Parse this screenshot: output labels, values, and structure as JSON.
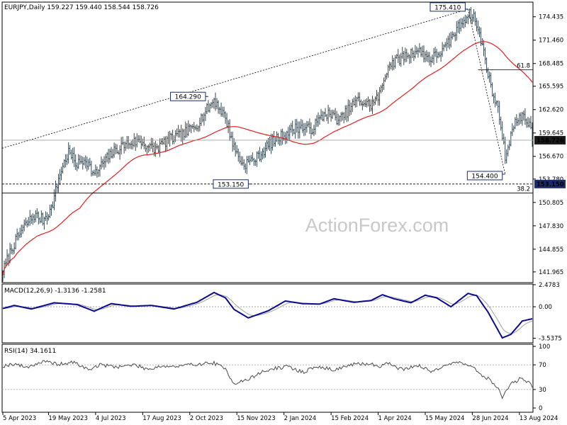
{
  "chart_data": [
    {
      "type": "candlestick",
      "symbol_line": "EURJPY,Daily  159.227 159.440 158.544 158.726",
      "last_price": "158.726",
      "y_ticks": [
        "174.435",
        "171.460",
        "168.485",
        "165.595",
        "162.620",
        "159.645",
        "156.670",
        "153.780",
        "150.805",
        "147.830",
        "144.855",
        "141.965"
      ],
      "y_tick_values": [
        174.435,
        171.46,
        168.485,
        165.595,
        162.62,
        159.645,
        156.67,
        153.78,
        150.805,
        147.83,
        144.855,
        141.965
      ],
      "ylim": [
        140.6,
        176.3
      ],
      "x_ticks": [
        "5 Apr 2023",
        "19 May 2023",
        "4 Jul 2023",
        "17 Aug 2023",
        "2 Oct 2023",
        "15 Nov 2023",
        "2 Jan 2024",
        "15 Feb 2024",
        "1 Apr 2024",
        "15 May 2024",
        "28 Jun 2024",
        "13 Aug 2024"
      ],
      "x_tick_bars": [
        0,
        32,
        65,
        98,
        131,
        164,
        197,
        230,
        263,
        296,
        329,
        362
      ],
      "n_bars": 372,
      "anchors": [
        [
          0,
          142.0
        ],
        [
          6,
          144.9
        ],
        [
          14,
          147.5
        ],
        [
          22,
          149.2
        ],
        [
          28,
          148.6
        ],
        [
          34,
          150.0
        ],
        [
          40,
          154.5
        ],
        [
          46,
          157.2
        ],
        [
          52,
          155.6
        ],
        [
          58,
          156.4
        ],
        [
          64,
          154.2
        ],
        [
          70,
          155.8
        ],
        [
          76,
          157.0
        ],
        [
          86,
          158.3
        ],
        [
          96,
          158.6
        ],
        [
          106,
          157.5
        ],
        [
          116,
          158.8
        ],
        [
          126,
          159.4
        ],
        [
          136,
          160.8
        ],
        [
          148,
          163.9
        ],
        [
          156,
          161.6
        ],
        [
          162,
          157.8
        ],
        [
          168,
          155.6
        ],
        [
          178,
          156.5
        ],
        [
          188,
          158.4
        ],
        [
          198,
          159.6
        ],
        [
          206,
          160.4
        ],
        [
          216,
          160.1
        ],
        [
          226,
          162.2
        ],
        [
          236,
          161.3
        ],
        [
          248,
          163.8
        ],
        [
          258,
          163.2
        ],
        [
          264,
          164.5
        ],
        [
          270,
          168.3
        ],
        [
          280,
          169.3
        ],
        [
          290,
          170.2
        ],
        [
          300,
          169.1
        ],
        [
          310,
          170.4
        ],
        [
          320,
          173.4
        ],
        [
          326,
          174.8
        ],
        [
          330,
          174.5
        ],
        [
          336,
          170.8
        ],
        [
          342,
          165.5
        ],
        [
          348,
          162.0
        ],
        [
          352,
          156.5
        ],
        [
          356,
          159.5
        ],
        [
          362,
          162.0
        ],
        [
          368,
          161.0
        ],
        [
          372,
          158.7
        ]
      ],
      "annotations": [
        {
          "label": "175.410",
          "bar": 326,
          "price": 175.41
        },
        {
          "label": "164.290",
          "bar": 144,
          "price": 164.29
        },
        {
          "label": "153.150",
          "bar": 174,
          "price": 153.15
        },
        {
          "label": "154.400",
          "bar": 352,
          "price": 154.4
        }
      ],
      "fib_labels": {
        "f618": "61.8",
        "f382": "38.2"
      },
      "fib_levels": {
        "f618": 167.69,
        "f382": 152.0
      },
      "support_label": "153.150",
      "support_level": 153.15,
      "moving_average": {
        "color": "#e02020"
      },
      "candle_color": "#37474f"
    },
    {
      "type": "macd",
      "label": "MACD(12,26,9) -1.3136 -1.2581",
      "y_ticks": [
        "2.4783",
        "0.00",
        "-3.5375"
      ],
      "y_tick_values": [
        2.4783,
        0,
        -3.5375
      ],
      "ylim": [
        -4.05,
        2.55
      ],
      "macd_anchors": [
        [
          0,
          -0.2
        ],
        [
          8,
          0.15
        ],
        [
          20,
          -0.25
        ],
        [
          36,
          0.45
        ],
        [
          52,
          0.25
        ],
        [
          64,
          -0.5
        ],
        [
          76,
          0.35
        ],
        [
          90,
          0.05
        ],
        [
          104,
          0.15
        ],
        [
          120,
          -0.25
        ],
        [
          136,
          0.5
        ],
        [
          148,
          1.6
        ],
        [
          156,
          1.0
        ],
        [
          162,
          -0.3
        ],
        [
          172,
          -1.25
        ],
        [
          186,
          -0.45
        ],
        [
          198,
          0.65
        ],
        [
          210,
          0.35
        ],
        [
          222,
          0.3
        ],
        [
          232,
          0.9
        ],
        [
          246,
          0.5
        ],
        [
          258,
          0.7
        ],
        [
          266,
          1.35
        ],
        [
          274,
          0.9
        ],
        [
          286,
          0.45
        ],
        [
          296,
          1.3
        ],
        [
          304,
          1.0
        ],
        [
          314,
          0.0
        ],
        [
          326,
          1.5
        ],
        [
          332,
          1.25
        ],
        [
          340,
          -0.6
        ],
        [
          350,
          -3.5
        ],
        [
          356,
          -3.1
        ],
        [
          364,
          -1.6
        ],
        [
          372,
          -1.31
        ]
      ],
      "signal_color": "#a0a0a0",
      "macd_color": "#0a0a8c"
    },
    {
      "type": "rsi",
      "label": "RSI(14) 34.1611",
      "y_ticks": [
        "100",
        "70",
        "30",
        "0"
      ],
      "y_tick_values": [
        100,
        70,
        30,
        0
      ],
      "ylim": [
        0,
        100
      ],
      "rsi_anchors": [
        [
          0,
          68
        ],
        [
          8,
          72
        ],
        [
          16,
          66
        ],
        [
          28,
          75
        ],
        [
          40,
          71
        ],
        [
          50,
          74
        ],
        [
          60,
          62
        ],
        [
          68,
          70
        ],
        [
          80,
          67
        ],
        [
          92,
          70
        ],
        [
          102,
          63
        ],
        [
          110,
          68
        ],
        [
          122,
          67
        ],
        [
          134,
          71
        ],
        [
          148,
          73
        ],
        [
          156,
          63
        ],
        [
          162,
          40
        ],
        [
          172,
          46
        ],
        [
          180,
          57
        ],
        [
          190,
          64
        ],
        [
          200,
          67
        ],
        [
          210,
          58
        ],
        [
          220,
          67
        ],
        [
          232,
          62
        ],
        [
          244,
          70
        ],
        [
          256,
          72
        ],
        [
          264,
          68
        ],
        [
          270,
          73
        ],
        [
          280,
          62
        ],
        [
          290,
          70
        ],
        [
          300,
          59
        ],
        [
          310,
          70
        ],
        [
          320,
          74
        ],
        [
          328,
          70
        ],
        [
          334,
          54
        ],
        [
          340,
          48
        ],
        [
          346,
          35
        ],
        [
          350,
          18
        ],
        [
          356,
          39
        ],
        [
          364,
          49
        ],
        [
          368,
          42
        ],
        [
          372,
          34
        ]
      ],
      "line_color": "#4a4a4a"
    }
  ],
  "watermark": "ActionForex.com"
}
